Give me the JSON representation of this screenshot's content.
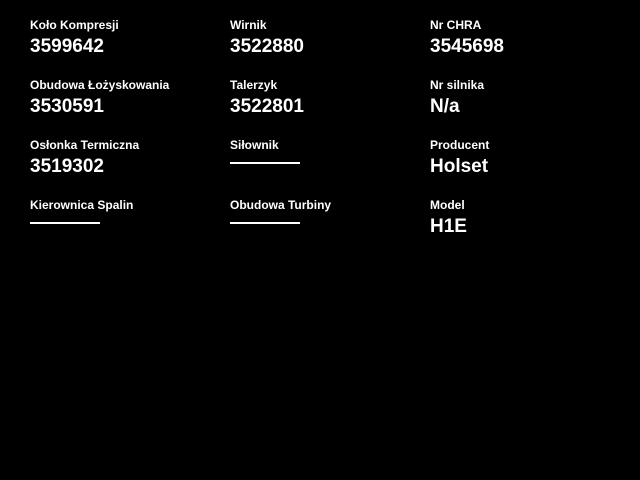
{
  "page": {
    "background_color": "#000000",
    "text_color": "#ffffff"
  },
  "fields": [
    {
      "label": "Koło Kompresji",
      "value": "3599642",
      "empty": false
    },
    {
      "label": "Wirnik",
      "value": "3522880",
      "empty": false
    },
    {
      "label": "Nr CHRA",
      "value": "3545698",
      "empty": false
    },
    {
      "label": "Obudowa Łożyskowania",
      "value": "3530591",
      "empty": false
    },
    {
      "label": "Talerzyk",
      "value": "3522801",
      "empty": false
    },
    {
      "label": "Nr silnika",
      "value": "N/a",
      "empty": false
    },
    {
      "label": "Osłonka Termiczna",
      "value": "3519302",
      "empty": false
    },
    {
      "label": "Siłownik",
      "value": "",
      "empty": true
    },
    {
      "label": "Producent",
      "value": "Holset",
      "empty": false
    },
    {
      "label": "Kierownica Spalin",
      "value": "",
      "empty": true
    },
    {
      "label": "Obudowa Turbiny",
      "value": "",
      "empty": true
    },
    {
      "label": "Model",
      "value": "H1E",
      "empty": false
    }
  ]
}
